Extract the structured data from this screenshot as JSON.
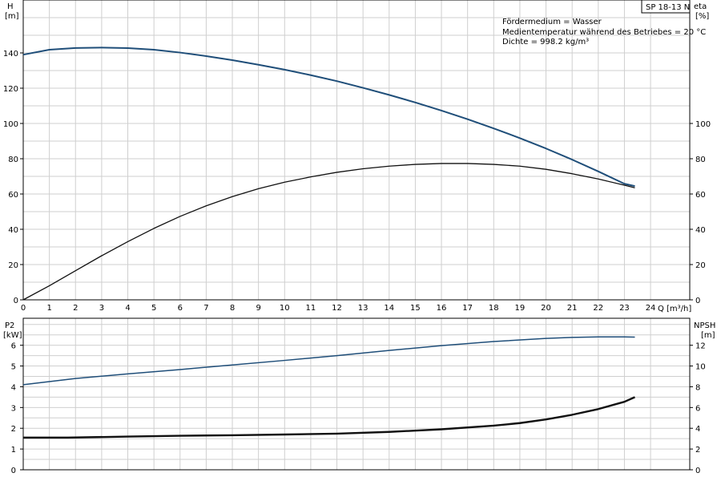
{
  "chart_data": [
    {
      "type": "line",
      "title": "SP 18-13 N",
      "xlabel": "Q [m³/h]",
      "x_label_q": "Q",
      "x_label_unit": "[m³/h]",
      "x_ticks": [
        0,
        1,
        2,
        3,
        4,
        5,
        6,
        7,
        8,
        9,
        10,
        11,
        12,
        13,
        14,
        15,
        16,
        17,
        18,
        19,
        20,
        21,
        22,
        23,
        24
      ],
      "xlim": [
        0,
        25.5
      ],
      "y_left": {
        "label": "H",
        "unit": "[m]",
        "ticks": [
          0,
          20,
          40,
          60,
          80,
          100,
          120,
          140
        ],
        "lim": [
          0,
          170
        ]
      },
      "y_right": {
        "label": "eta",
        "unit": "[%]",
        "ticks": [
          0,
          20,
          40,
          60,
          80,
          100
        ],
        "lim": [
          0,
          170
        ]
      },
      "annotations": [
        "Fördermedium = Wasser",
        "Medientemperatur während des Betriebes = 20 °C",
        "Dichte = 998.2 kg/m³"
      ],
      "grid": true,
      "series": [
        {
          "axis": "left",
          "color": "#1f4e79",
          "x": [
            0,
            1,
            2,
            3,
            4,
            5,
            6,
            7,
            8,
            9,
            10,
            11,
            12,
            13,
            14,
            15,
            16,
            17,
            18,
            19,
            20,
            21,
            22,
            23,
            23.4
          ],
          "y": [
            139,
            141.8,
            142.8,
            143,
            142.7,
            141.8,
            140.2,
            138.2,
            135.9,
            133.3,
            130.5,
            127.4,
            124,
            120.2,
            116.2,
            111.9,
            107.3,
            102.4,
            97.2,
            91.7,
            85.8,
            79.5,
            72.8,
            65.8,
            64.5
          ]
        },
        {
          "axis": "right",
          "color": "#111111",
          "x": [
            0,
            1,
            2,
            3,
            4,
            5,
            6,
            7,
            8,
            9,
            10,
            11,
            12,
            13,
            14,
            15,
            16,
            17,
            18,
            19,
            20,
            21,
            22,
            23,
            23.4
          ],
          "y": [
            0,
            8,
            16.5,
            25,
            33,
            40.5,
            47.3,
            53.3,
            58.5,
            63,
            66.7,
            69.7,
            72.3,
            74.3,
            75.8,
            76.8,
            77.3,
            77.3,
            76.8,
            75.8,
            74,
            71.5,
            68.5,
            65,
            63.5
          ]
        }
      ]
    },
    {
      "type": "line",
      "xlim": [
        0,
        25.5
      ],
      "y_left": {
        "label": "P2",
        "unit": "[kW]",
        "ticks": [
          0,
          1,
          2,
          3,
          4,
          5,
          6
        ],
        "lim": [
          0,
          7.3
        ]
      },
      "y_right": {
        "label": "NPSH",
        "unit": "[m]",
        "ticks": [
          0,
          2,
          4,
          6,
          8,
          10,
          12
        ],
        "lim": [
          0,
          14.6
        ]
      },
      "grid": true,
      "series": [
        {
          "axis": "left",
          "color": "#1f4e79",
          "x": [
            0,
            2,
            4,
            6,
            8,
            10,
            12,
            14,
            16,
            18,
            20,
            21,
            22,
            23,
            23.4
          ],
          "y": [
            4.1,
            4.4,
            4.62,
            4.83,
            5.05,
            5.27,
            5.5,
            5.75,
            5.98,
            6.18,
            6.33,
            6.38,
            6.4,
            6.4,
            6.39
          ]
        },
        {
          "axis": "right",
          "color": "#111111",
          "x": [
            0,
            1.7,
            4,
            6,
            8,
            10,
            12,
            14,
            16,
            18,
            19,
            20,
            21,
            22,
            23,
            23.4
          ],
          "y": [
            3.1,
            3.1,
            3.2,
            3.28,
            3.33,
            3.4,
            3.48,
            3.65,
            3.9,
            4.25,
            4.5,
            4.85,
            5.3,
            5.85,
            6.55,
            7
          ]
        }
      ]
    }
  ]
}
